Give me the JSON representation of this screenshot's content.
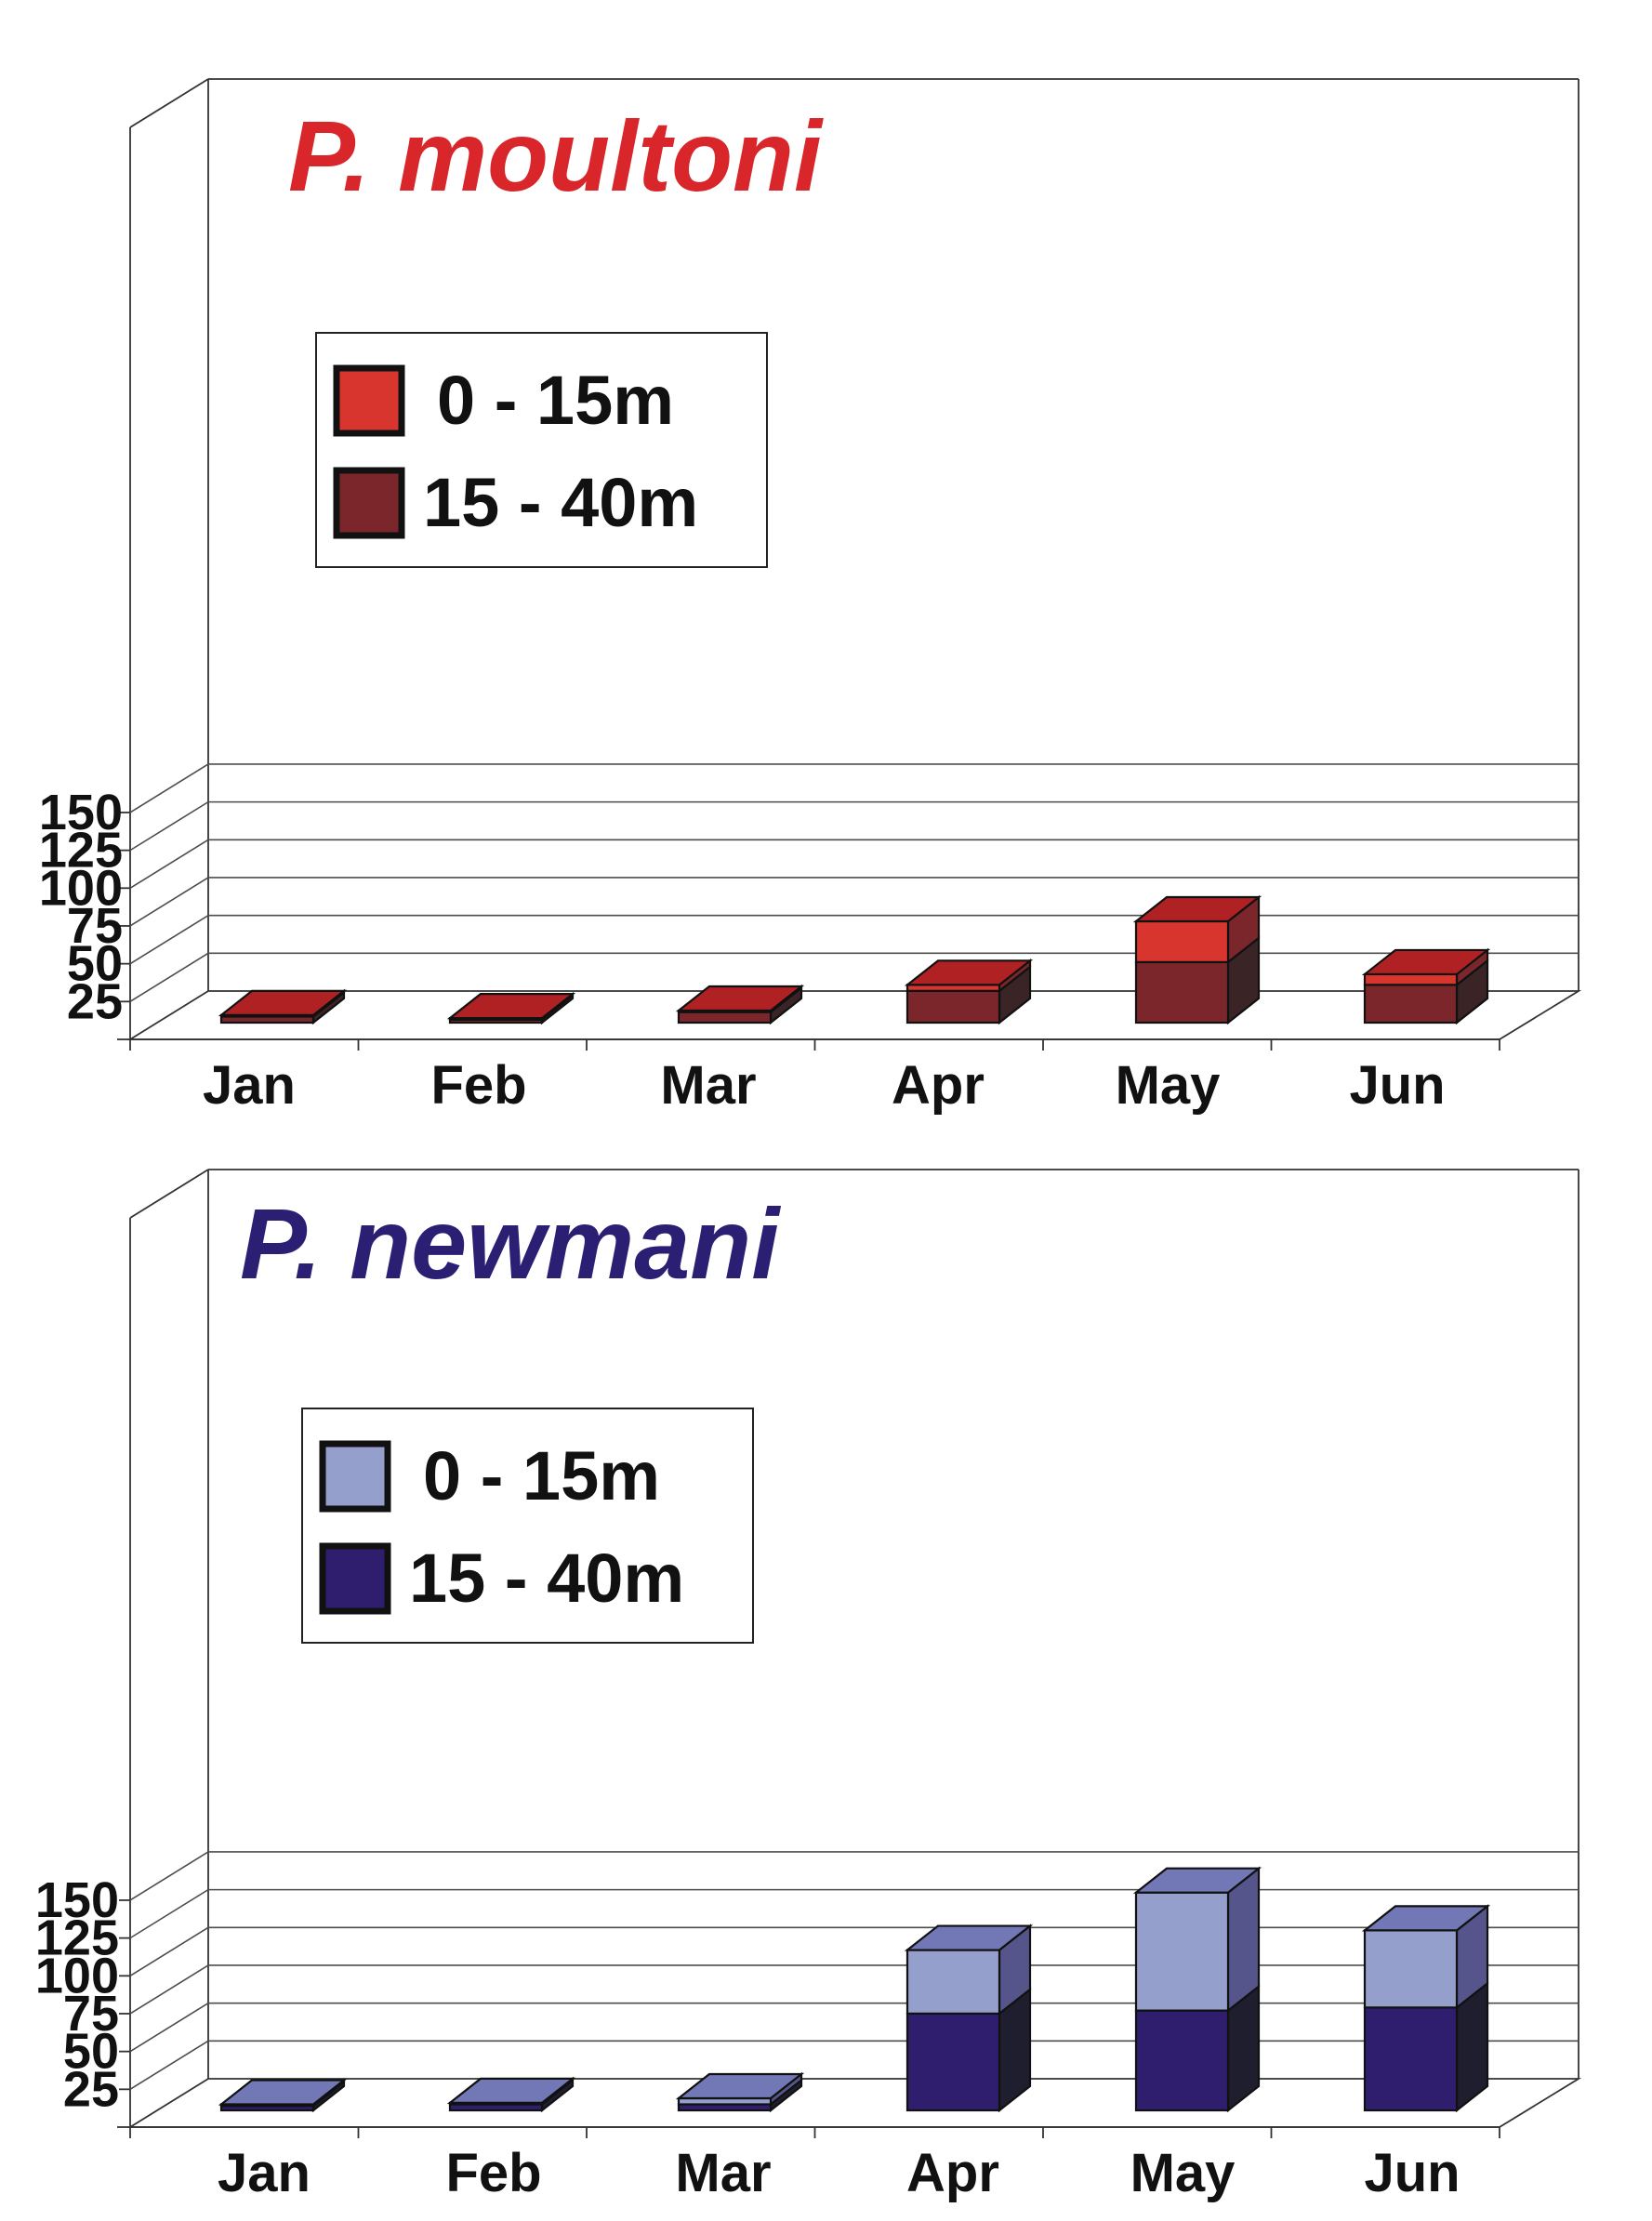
{
  "chart_data": [
    {
      "type": "bar",
      "stacked": true,
      "three_d": true,
      "title": "P. moultoni",
      "title_color": "#d8262a",
      "categories": [
        "Jan",
        "Feb",
        "Mar",
        "Apr",
        "May",
        "Jun"
      ],
      "ylim": [
        0,
        150
      ],
      "y_ticks": [
        "150",
        "125",
        "100",
        "75",
        "50",
        "25"
      ],
      "y_tick_values": [
        150,
        125,
        100,
        75,
        50,
        25
      ],
      "grid": true,
      "legend_position": "upper-left",
      "series": [
        {
          "name": "15 - 40m",
          "values": [
            4,
            2,
            7,
            21,
            40,
            25
          ],
          "colors": {
            "front": "#7b262b",
            "side": "#3b2426",
            "top": "#b02124"
          }
        },
        {
          "name": "0 - 15m",
          "values": [
            1,
            1,
            1,
            4,
            27,
            7
          ],
          "colors": {
            "front": "#d8352e",
            "side": "#7b262b",
            "top": "#b02124"
          }
        }
      ],
      "legend": [
        "0 - 15m",
        "15 - 40m"
      ]
    },
    {
      "type": "bar",
      "stacked": true,
      "three_d": true,
      "title": "P. newmani",
      "title_color": "#2a1f73",
      "categories": [
        "Jan",
        "Feb",
        "Mar",
        "Apr",
        "May",
        "Jun"
      ],
      "ylim": [
        0,
        150
      ],
      "y_ticks": [
        "150",
        "125",
        "100",
        "75",
        "50",
        "25"
      ],
      "y_tick_values": [
        150,
        125,
        100,
        75,
        50,
        25
      ],
      "grid": true,
      "legend_position": "upper-left",
      "series": [
        {
          "name": "15 - 40m",
          "values": [
            3,
            4,
            4,
            64,
            66,
            68
          ],
          "colors": {
            "front": "#2f1e6e",
            "side": "#1f1e2e",
            "top": "#3b2f80"
          }
        },
        {
          "name": "0 - 15m",
          "values": [
            1,
            1,
            4,
            42,
            78,
            51
          ],
          "colors": {
            "front": "#949fcb",
            "side": "#55558c",
            "top": "#7178b5"
          }
        }
      ],
      "legend": [
        "0 - 15m",
        "15 - 40m"
      ]
    }
  ]
}
